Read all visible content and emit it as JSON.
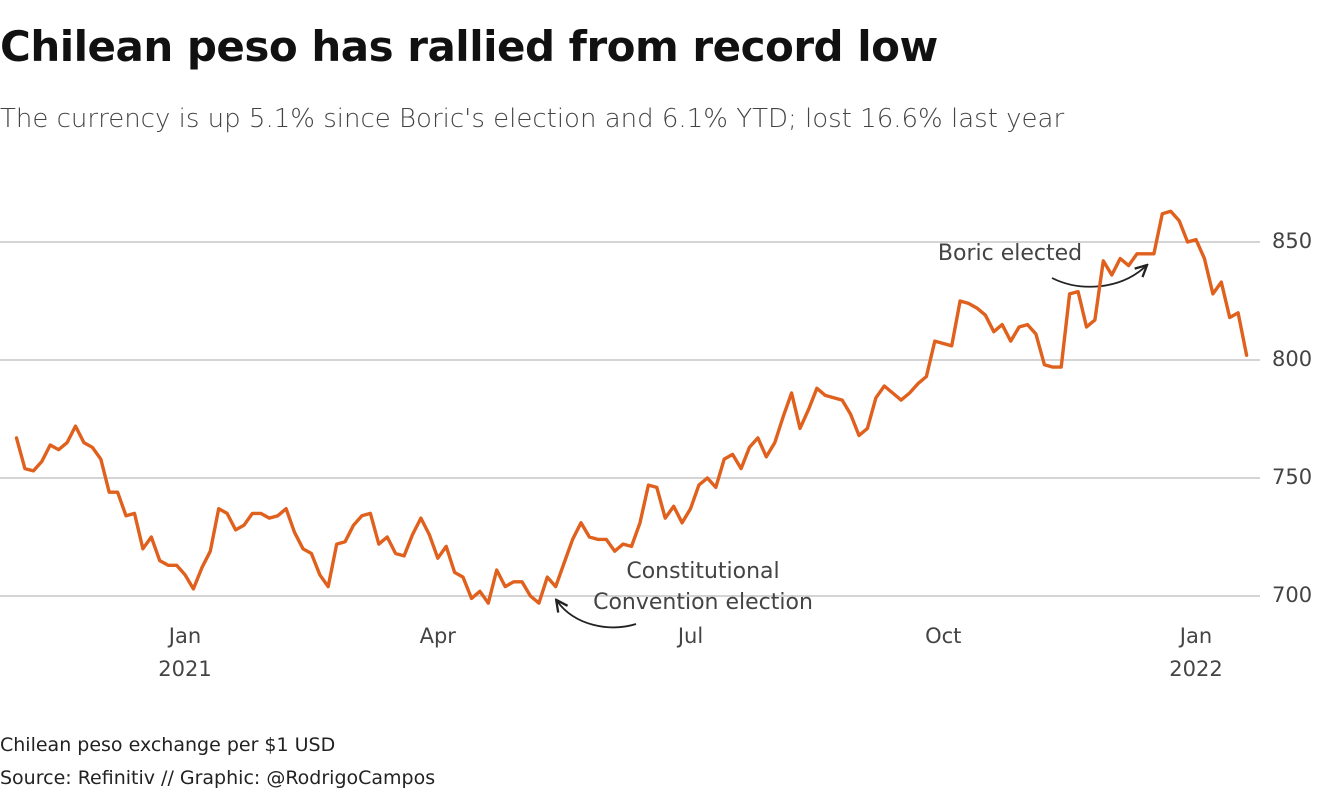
{
  "chart_data": {
    "type": "line",
    "title": "Chilean peso has rallied from record low",
    "subtitle": "The currency is up 5.1% since Boric's election and 6.1% YTD; lost 16.6% last year",
    "note": "Chilean peso exchange per $1 USD",
    "source": "Source: Refinitiv // Graphic: @RodrigoCampos",
    "annotations": [
      "Boric elected",
      "Constitutional\nConvention election"
    ],
    "color": "#e0601d",
    "grid": true,
    "ylim": [
      690,
      875
    ],
    "yticks": [
      700,
      750,
      800,
      850
    ],
    "categories": [
      null,
      null,
      null,
      null,
      null,
      null,
      null,
      null,
      null,
      null,
      null,
      null,
      null,
      null,
      null,
      null,
      null,
      null,
      null,
      null,
      "Jan\n2021",
      null,
      null,
      null,
      null,
      null,
      null,
      null,
      null,
      null,
      null,
      null,
      null,
      null,
      null,
      null,
      null,
      null,
      null,
      null,
      null,
      null,
      null,
      null,
      null,
      null,
      null,
      null,
      null,
      null,
      "Apr",
      null,
      null,
      null,
      null,
      null,
      null,
      null,
      null,
      null,
      null,
      null,
      null,
      null,
      null,
      null,
      null,
      null,
      null,
      null,
      null,
      null,
      null,
      null,
      null,
      null,
      null,
      null,
      null,
      null,
      "Jul",
      null,
      null,
      null,
      null,
      null,
      null,
      null,
      null,
      null,
      null,
      null,
      null,
      null,
      null,
      null,
      null,
      null,
      null,
      null,
      null,
      null,
      null,
      null,
      null,
      null,
      null,
      null,
      null,
      null,
      "Oct",
      null,
      null,
      null,
      null,
      null,
      null,
      null,
      null,
      null,
      null,
      null,
      null,
      null,
      null,
      null,
      null,
      null,
      null,
      null,
      null,
      null,
      null,
      null,
      null,
      null,
      null,
      null,
      null,
      null,
      "Jan\n2022",
      null,
      null,
      null,
      null,
      null,
      null
    ],
    "values": [
      767,
      754,
      753,
      757,
      764,
      762,
      765,
      772,
      765,
      763,
      758,
      744,
      744,
      734,
      735,
      720,
      725,
      715,
      713,
      713,
      709,
      703,
      712,
      719,
      737,
      735,
      728,
      730,
      735,
      735,
      733,
      734,
      737,
      727,
      720,
      718,
      709,
      704,
      722,
      723,
      730,
      734,
      735,
      722,
      725,
      718,
      717,
      726,
      733,
      726,
      716,
      721,
      710,
      708,
      699,
      702,
      697,
      711,
      704,
      706,
      706,
      700,
      697,
      708,
      704,
      714,
      724,
      731,
      725,
      724,
      724,
      719,
      722,
      721,
      731,
      747,
      746,
      733,
      738,
      731,
      737,
      747,
      750,
      746,
      758,
      760,
      754,
      763,
      767,
      759,
      765,
      776,
      786,
      771,
      779,
      788,
      785,
      784,
      783,
      777,
      768,
      771,
      784,
      789,
      786,
      783,
      786,
      790,
      793,
      808,
      807,
      806,
      825,
      824,
      822,
      819,
      812,
      815,
      808,
      814,
      815,
      811,
      798,
      797,
      797,
      828,
      829,
      814,
      817,
      842,
      836,
      843,
      840,
      845,
      845,
      845,
      862,
      863,
      859,
      850,
      851,
      843,
      828,
      833,
      818,
      820,
      802
    ]
  }
}
